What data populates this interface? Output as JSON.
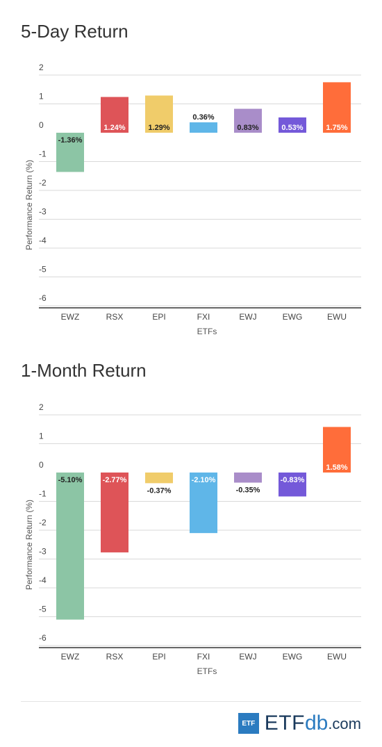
{
  "charts": [
    {
      "title": "5-Day Return",
      "chart_data": {
        "type": "bar",
        "title": "5-Day Return",
        "xlabel": "ETFs",
        "ylabel": "Performance Return (%)",
        "ylim": [
          -6,
          2
        ],
        "yticks": [
          2,
          1,
          0,
          -1,
          -2,
          -3,
          -4,
          -5,
          -6
        ],
        "categories": [
          "EWZ",
          "RSX",
          "EPI",
          "FXI",
          "EWJ",
          "EWG",
          "EWU"
        ],
        "values": [
          -1.36,
          1.24,
          1.29,
          0.36,
          0.83,
          0.53,
          1.75
        ],
        "data_labels": [
          "-1.36%",
          "1.24%",
          "1.29%",
          "0.36%",
          "0.83%",
          "0.53%",
          "1.75%"
        ],
        "colors": [
          "#8cc5a5",
          "#de5458",
          "#f0cc6a",
          "#5fb6e8",
          "#a98dc9",
          "#7459d9",
          "#ff6d3a"
        ],
        "grid": true
      }
    },
    {
      "title": "1-Month Return",
      "chart_data": {
        "type": "bar",
        "title": "1-Month Return",
        "xlabel": "ETFs",
        "ylabel": "Performance Return (%)",
        "ylim": [
          -6,
          2
        ],
        "yticks": [
          2,
          1,
          0,
          -1,
          -2,
          -3,
          -4,
          -5,
          -6
        ],
        "categories": [
          "EWZ",
          "RSX",
          "EPI",
          "FXI",
          "EWJ",
          "EWG",
          "EWU"
        ],
        "values": [
          -5.1,
          -2.77,
          -0.37,
          -2.1,
          -0.35,
          -0.83,
          1.58
        ],
        "data_labels": [
          "-5.10%",
          "-2.77%",
          "-0.37%",
          "-2.10%",
          "-0.35%",
          "-0.83%",
          "1.58%"
        ],
        "colors": [
          "#8cc5a5",
          "#de5458",
          "#f0cc6a",
          "#5fb6e8",
          "#a98dc9",
          "#7459d9",
          "#ff6d3a"
        ],
        "grid": true
      }
    }
  ],
  "logo": {
    "box_text": "ETF",
    "etf_text": "ETF",
    "db_text": "db",
    "com_text": ".com"
  }
}
